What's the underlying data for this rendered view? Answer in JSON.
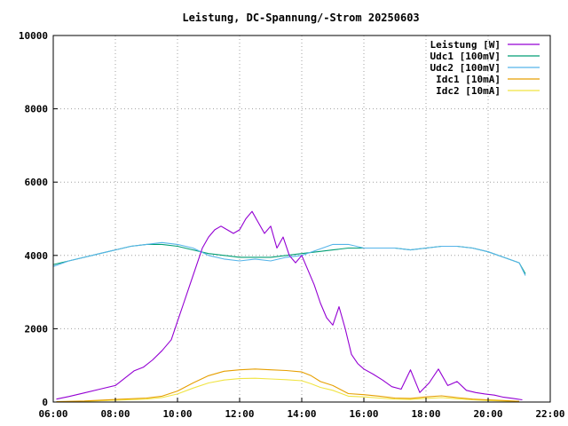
{
  "chart_data": {
    "type": "line",
    "title": "Leistung, DC-Spannung/-Strom 20250603",
    "xlabel": "",
    "ylabel": "",
    "x_unit": "hours",
    "xlim": [
      6,
      22
    ],
    "ylim": [
      0,
      10000
    ],
    "grid": true,
    "legend_position": "top-right",
    "x_ticks": [
      {
        "value": 6,
        "label": "06:00"
      },
      {
        "value": 8,
        "label": "08:00"
      },
      {
        "value": 10,
        "label": "10:00"
      },
      {
        "value": 12,
        "label": "12:00"
      },
      {
        "value": 14,
        "label": "14:00"
      },
      {
        "value": 16,
        "label": "16:00"
      },
      {
        "value": 18,
        "label": "18:00"
      },
      {
        "value": 20,
        "label": "20:00"
      },
      {
        "value": 22,
        "label": "22:00"
      }
    ],
    "y_ticks": [
      {
        "value": 0,
        "label": "0"
      },
      {
        "value": 2000,
        "label": "2000"
      },
      {
        "value": 4000,
        "label": "4000"
      },
      {
        "value": 6000,
        "label": "6000"
      },
      {
        "value": 8000,
        "label": "8000"
      },
      {
        "value": 10000,
        "label": "10000"
      }
    ],
    "series": [
      {
        "name": "Leistung [W]",
        "color": "#9400d3",
        "x": [
          6.1,
          6.5,
          7.0,
          7.5,
          8.0,
          8.3,
          8.6,
          8.9,
          9.2,
          9.5,
          9.8,
          10.0,
          10.2,
          10.4,
          10.6,
          10.8,
          11.0,
          11.2,
          11.4,
          11.6,
          11.8,
          12.0,
          12.2,
          12.4,
          12.6,
          12.8,
          13.0,
          13.2,
          13.4,
          13.6,
          13.8,
          14.0,
          14.2,
          14.4,
          14.6,
          14.8,
          15.0,
          15.2,
          15.4,
          15.6,
          15.8,
          16.0,
          16.3,
          16.6,
          16.9,
          17.2,
          17.5,
          17.8,
          18.1,
          18.4,
          18.7,
          19.0,
          19.3,
          19.6,
          19.9,
          20.2,
          20.5,
          20.8,
          21.1
        ],
        "y": [
          80,
          150,
          250,
          350,
          450,
          650,
          850,
          950,
          1150,
          1400,
          1700,
          2200,
          2700,
          3200,
          3700,
          4200,
          4500,
          4700,
          4800,
          4700,
          4600,
          4700,
          5000,
          5200,
          4900,
          4600,
          4800,
          4200,
          4500,
          4000,
          3800,
          4000,
          3600,
          3200,
          2700,
          2300,
          2100,
          2600,
          2000,
          1300,
          1050,
          900,
          760,
          600,
          420,
          350,
          880,
          260,
          520,
          900,
          450,
          560,
          320,
          260,
          220,
          190,
          130,
          100,
          60
        ]
      },
      {
        "name": "Udc1 [100mV]",
        "color": "#009e73",
        "x": [
          6.0,
          6.5,
          7.0,
          7.5,
          8.0,
          8.5,
          9.0,
          9.5,
          10.0,
          10.5,
          11.0,
          11.5,
          12.0,
          12.5,
          13.0,
          13.5,
          14.0,
          14.5,
          15.0,
          15.5,
          16.0,
          16.5,
          17.0,
          17.5,
          18.0,
          18.5,
          19.0,
          19.5,
          20.0,
          20.5,
          21.0,
          21.2
        ],
        "y": [
          3750,
          3850,
          3950,
          4050,
          4150,
          4250,
          4300,
          4300,
          4250,
          4150,
          4050,
          4000,
          3950,
          3950,
          3950,
          4000,
          4050,
          4100,
          4150,
          4200,
          4200,
          4200,
          4200,
          4150,
          4200,
          4250,
          4250,
          4200,
          4100,
          3950,
          3800,
          3500
        ]
      },
      {
        "name": "Udc2 [100mV]",
        "color": "#56b4e9",
        "x": [
          6.0,
          6.5,
          7.0,
          7.5,
          8.0,
          8.5,
          9.0,
          9.5,
          10.0,
          10.5,
          11.0,
          11.5,
          12.0,
          12.5,
          13.0,
          13.5,
          14.0,
          14.5,
          15.0,
          15.5,
          16.0,
          16.5,
          17.0,
          17.5,
          18.0,
          18.5,
          19.0,
          19.5,
          20.0,
          20.5,
          21.0,
          21.2
        ],
        "y": [
          3700,
          3850,
          3950,
          4050,
          4150,
          4250,
          4300,
          4350,
          4300,
          4200,
          4000,
          3900,
          3850,
          3900,
          3850,
          3950,
          4000,
          4150,
          4300,
          4300,
          4200,
          4200,
          4200,
          4150,
          4200,
          4250,
          4250,
          4200,
          4100,
          3950,
          3800,
          3450
        ]
      },
      {
        "name": "Idc1 [10mA]",
        "color": "#e69f00",
        "x": [
          6.1,
          7.0,
          8.0,
          9.0,
          9.5,
          10.0,
          10.5,
          11.0,
          11.5,
          12.0,
          12.5,
          13.0,
          13.5,
          14.0,
          14.3,
          14.6,
          15.0,
          15.5,
          16.0,
          16.5,
          17.0,
          17.5,
          18.0,
          18.5,
          19.0,
          19.5,
          20.0,
          20.5,
          21.0
        ],
        "y": [
          10,
          30,
          70,
          110,
          160,
          300,
          520,
          720,
          840,
          880,
          900,
          880,
          860,
          820,
          720,
          560,
          450,
          230,
          200,
          160,
          110,
          100,
          140,
          170,
          120,
          80,
          60,
          40,
          20
        ]
      },
      {
        "name": "Idc2 [10mA]",
        "color": "#f0e442",
        "x": [
          6.1,
          7.0,
          8.0,
          9.0,
          9.5,
          10.0,
          10.5,
          11.0,
          11.5,
          12.0,
          12.5,
          13.0,
          13.5,
          14.0,
          14.3,
          14.6,
          15.0,
          15.5,
          16.0,
          16.5,
          17.0,
          17.5,
          18.0,
          18.5,
          19.0,
          19.5,
          20.0,
          20.5,
          21.0
        ],
        "y": [
          5,
          20,
          50,
          80,
          120,
          220,
          380,
          520,
          600,
          640,
          650,
          630,
          610,
          580,
          500,
          400,
          320,
          160,
          140,
          110,
          80,
          70,
          100,
          120,
          90,
          60,
          40,
          30,
          15
        ]
      }
    ]
  }
}
